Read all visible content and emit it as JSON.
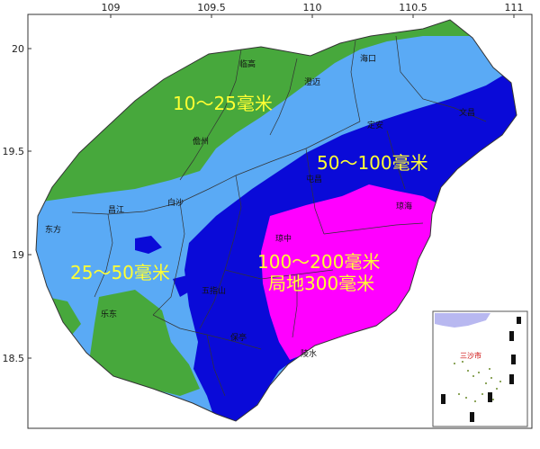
{
  "axes": {
    "lon_ticks": [
      "109",
      "109.5",
      "110",
      "110.5",
      "111"
    ],
    "lat_ticks": [
      "20",
      "19.5",
      "19",
      "18.5"
    ]
  },
  "rain_bands": [
    {
      "label": "10～25毫米",
      "color": "#47a83c"
    },
    {
      "label": "25～50毫米",
      "color": "#5aaaf5"
    },
    {
      "label": "50～100毫米",
      "color": "#0a0ad8"
    },
    {
      "label": "100～200毫米",
      "color": "#ff00ff"
    },
    {
      "label": "局地300毫米",
      "color": "#ff00ff"
    }
  ],
  "cities": [
    {
      "id": "haikou",
      "name": "海口"
    },
    {
      "id": "lingao",
      "name": "临高"
    },
    {
      "id": "chengmai",
      "name": "澄迈"
    },
    {
      "id": "danzhou",
      "name": "儋州"
    },
    {
      "id": "dingan",
      "name": "定安"
    },
    {
      "id": "wenchang",
      "name": "文昌"
    },
    {
      "id": "tunchang",
      "name": "屯昌"
    },
    {
      "id": "baisha",
      "name": "白沙"
    },
    {
      "id": "changjiang",
      "name": "昌江"
    },
    {
      "id": "qionghai",
      "name": "琼海"
    },
    {
      "id": "dongfang",
      "name": "东方"
    },
    {
      "id": "qiongzhong",
      "name": "琼中"
    },
    {
      "id": "wuzhishan",
      "name": "五指山"
    },
    {
      "id": "ledong",
      "name": "乐东"
    },
    {
      "id": "baoting",
      "name": "保亭"
    },
    {
      "id": "lingshui",
      "name": "陵水"
    }
  ],
  "inset": {
    "city": "三沙市"
  },
  "colors": {
    "sea": "#ffffff",
    "frame": "#333333",
    "boundary": "#333333",
    "lavender": "#b8b8f0"
  }
}
